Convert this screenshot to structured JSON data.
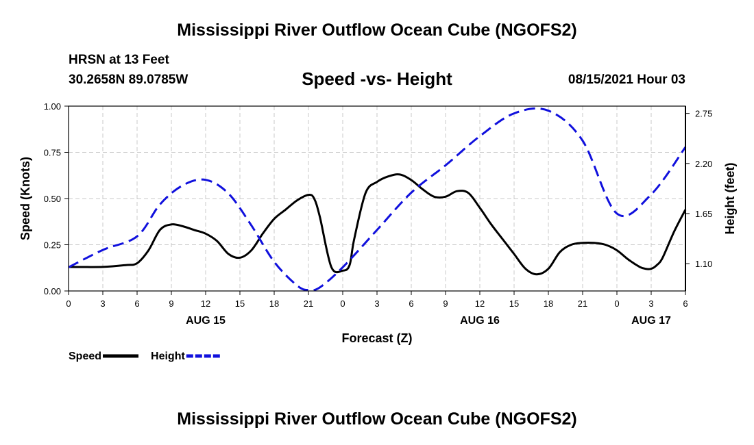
{
  "header": {
    "title": "Mississippi River Outflow Ocean Cube (NGOFS2)",
    "station": "HRSN at 13 Feet",
    "coords": "30.2658N  89.0785W",
    "subtitle": "Speed -vs- Height",
    "timestamp": "08/15/2021 Hour 03"
  },
  "footer": {
    "title": "Mississippi River Outflow Ocean Cube (NGOFS2)"
  },
  "chart_data": {
    "type": "line",
    "title": "Speed -vs- Height",
    "xlabel": "Forecast (Z)",
    "ylabel": "Speed (Knots)",
    "y2label": "Height (feet)",
    "grid": true,
    "x_range": [
      0,
      54
    ],
    "ylim": [
      0,
      1
    ],
    "y2lim": [
      0.8,
      2.83
    ],
    "x_ticks": [
      0,
      3,
      6,
      9,
      12,
      15,
      18,
      21,
      24,
      27,
      30,
      33,
      36,
      39,
      42,
      45,
      48,
      51,
      54
    ],
    "x_tick_labels": [
      "0",
      "3",
      "6",
      "9",
      "12",
      "15",
      "18",
      "21",
      "0",
      "3",
      "6",
      "9",
      "12",
      "15",
      "18",
      "21",
      "0",
      "3",
      "6"
    ],
    "date_labels": [
      {
        "x": 12,
        "label": "AUG 15"
      },
      {
        "x": 36,
        "label": "AUG 16"
      },
      {
        "x": 51,
        "label": "AUG 17"
      }
    ],
    "y_ticks": [
      0,
      0.25,
      0.5,
      0.75,
      1
    ],
    "y_tick_labels": [
      "0.00",
      "0.25",
      "0.50",
      "0.75",
      "1.00"
    ],
    "y2_ticks": [
      1.1,
      1.65,
      2.2,
      2.75
    ],
    "y2_tick_labels": [
      "1.10",
      "1.65",
      "2.20",
      "2.75"
    ],
    "series": [
      {
        "name": "Speed",
        "axis": "left",
        "color": "#000000",
        "dash": false,
        "x": [
          0,
          3,
          5,
          6,
          7,
          8,
          9,
          10,
          11,
          12,
          13,
          14,
          15,
          16,
          17,
          18,
          19,
          20,
          21,
          21.5,
          22,
          23,
          24,
          24.6,
          25,
          26,
          27,
          28,
          29,
          30,
          31,
          32,
          33,
          34,
          35,
          36,
          37,
          38,
          39,
          40,
          41,
          42,
          43,
          44,
          45,
          46,
          47,
          48,
          49,
          50,
          50.5,
          51,
          51.5,
          52,
          53,
          54
        ],
        "values": [
          0.13,
          0.13,
          0.14,
          0.15,
          0.22,
          0.33,
          0.36,
          0.35,
          0.33,
          0.31,
          0.27,
          0.2,
          0.18,
          0.22,
          0.31,
          0.39,
          0.44,
          0.49,
          0.52,
          0.5,
          0.4,
          0.13,
          0.11,
          0.14,
          0.28,
          0.53,
          0.59,
          0.62,
          0.63,
          0.6,
          0.55,
          0.51,
          0.51,
          0.54,
          0.53,
          0.45,
          0.36,
          0.28,
          0.2,
          0.12,
          0.09,
          0.12,
          0.21,
          0.25,
          0.26,
          0.26,
          0.25,
          0.22,
          0.17,
          0.13,
          0.12,
          0.12,
          0.14,
          0.18,
          0.32,
          0.44
        ]
      },
      {
        "name": "Height",
        "axis": "right",
        "color": "#1010dd",
        "dash": true,
        "x": [
          0,
          3,
          6,
          8,
          10,
          12,
          14,
          16,
          18,
          20,
          21,
          22,
          24,
          27,
          30,
          33,
          36,
          39,
          42,
          45,
          48,
          51,
          54
        ],
        "values": [
          1.06,
          1.25,
          1.4,
          1.75,
          1.96,
          2.02,
          1.87,
          1.52,
          1.12,
          0.86,
          0.81,
          0.84,
          1.06,
          1.47,
          1.88,
          2.18,
          2.5,
          2.75,
          2.78,
          2.45,
          1.65,
          1.86,
          2.38
        ]
      }
    ],
    "legend": {
      "placement": "bottom-left",
      "items": [
        {
          "label": "Speed",
          "color": "#000000",
          "dash": false
        },
        {
          "label": "Height",
          "color": "#1010dd",
          "dash": true
        }
      ]
    }
  }
}
